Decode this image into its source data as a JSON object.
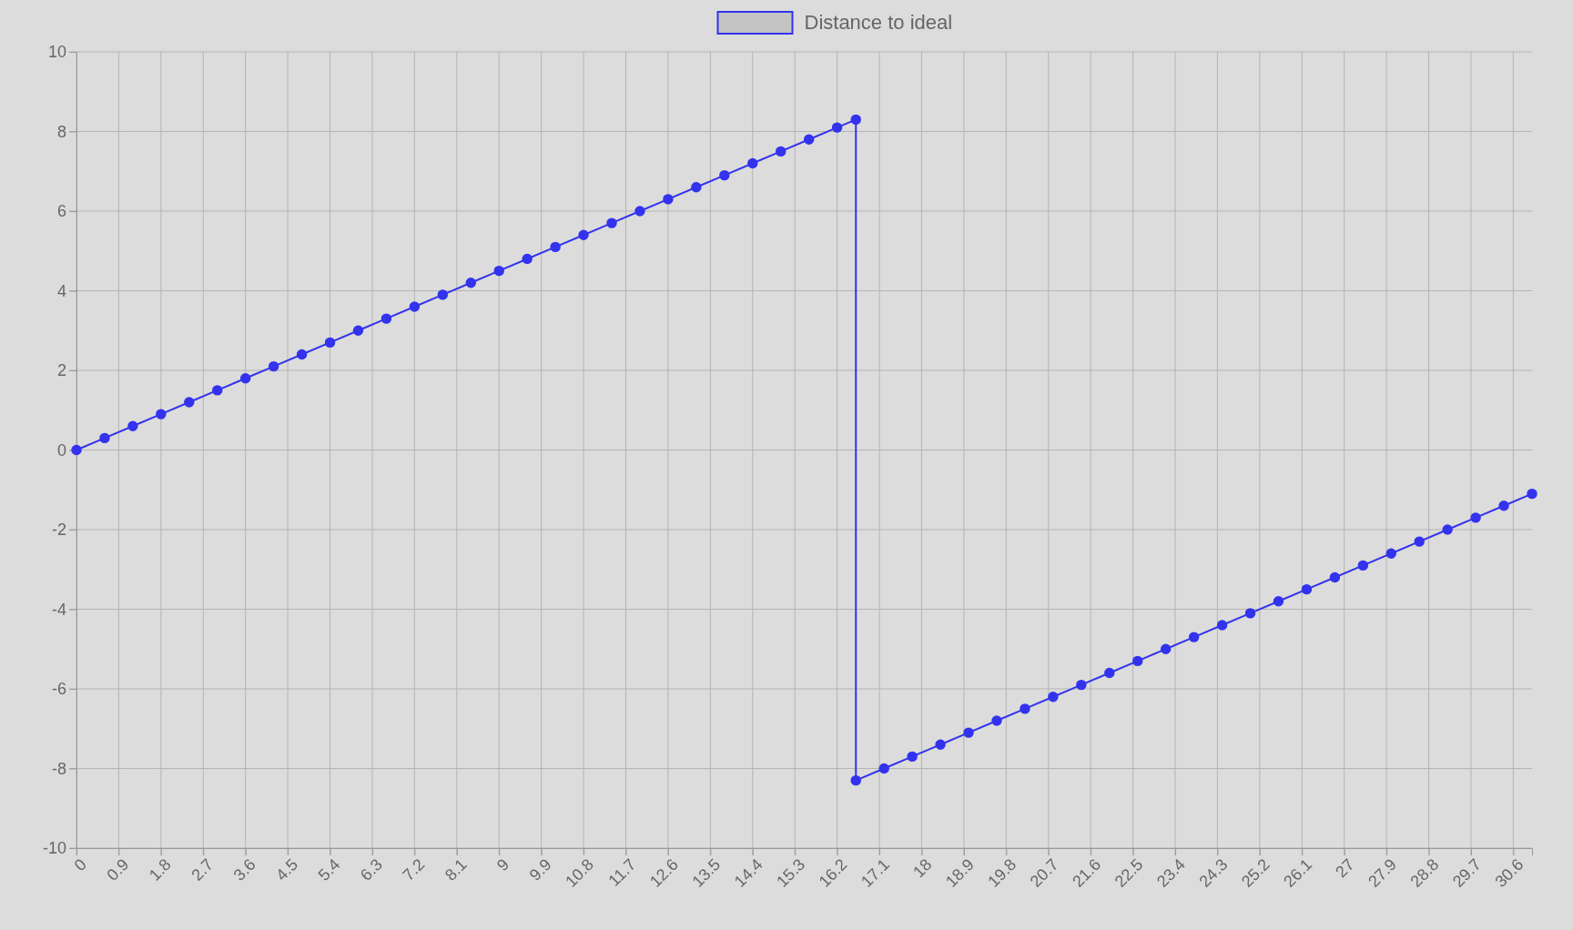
{
  "chart_data": {
    "type": "line",
    "x": [
      0,
      0.6,
      1.2,
      1.8,
      2.4,
      3,
      3.6,
      4.2,
      4.8,
      5.4,
      6,
      6.6,
      7.2,
      7.8,
      8.4,
      9,
      9.6,
      10.2,
      10.8,
      11.4,
      12,
      12.6,
      13.2,
      13.8,
      14.4,
      15,
      15.6,
      16.2,
      16.6,
      16.6,
      17.2,
      17.8,
      18.4,
      19,
      19.6,
      20.2,
      20.8,
      21.4,
      22,
      22.6,
      23.2,
      23.8,
      24.4,
      25,
      25.6,
      26.2,
      26.8,
      27.4,
      28,
      28.6,
      29.2,
      29.8,
      30.4,
      31
    ],
    "series": [
      {
        "name": "Distance to ideal",
        "color": "#3333ee",
        "values": [
          0,
          0.3,
          0.6,
          0.9,
          1.2,
          1.5,
          1.8,
          2.1,
          2.4,
          2.7,
          3,
          3.3,
          3.6,
          3.9,
          4.2,
          4.5,
          4.8,
          5.1,
          5.4,
          5.7,
          6,
          6.3,
          6.6,
          6.9,
          7.2,
          7.5,
          7.8,
          8.1,
          8.3,
          -8.3,
          -8,
          -7.7,
          -7.4,
          -7.1,
          -6.8,
          -6.5,
          -6.2,
          -5.9,
          -5.6,
          -5.3,
          -5,
          -4.7,
          -4.4,
          -4.1,
          -3.8,
          -3.5,
          -3.2,
          -2.9,
          -2.6,
          -2.3,
          -2,
          -1.7,
          -1.4,
          -1.1
        ]
      }
    ],
    "xlim": [
      0,
      31
    ],
    "xticks": [
      0,
      0.9,
      1.8,
      2.7,
      3.6,
      4.5,
      5.4,
      6.3,
      7.2,
      8.1,
      9,
      9.9,
      10.8,
      11.7,
      12.6,
      13.5,
      14.4,
      15.3,
      16.2,
      17.1,
      18,
      18.9,
      19.8,
      20.7,
      21.6,
      22.5,
      23.4,
      24.3,
      25.2,
      26.1,
      27,
      27.9,
      28.8,
      29.7,
      30.6
    ],
    "ylim": [
      -10,
      10
    ],
    "yticks": [
      -10,
      -8,
      -6,
      -4,
      -2,
      0,
      2,
      4,
      6,
      8,
      10
    ],
    "grid": true,
    "legend": "top",
    "marker": "circle",
    "line_style": "solid"
  }
}
